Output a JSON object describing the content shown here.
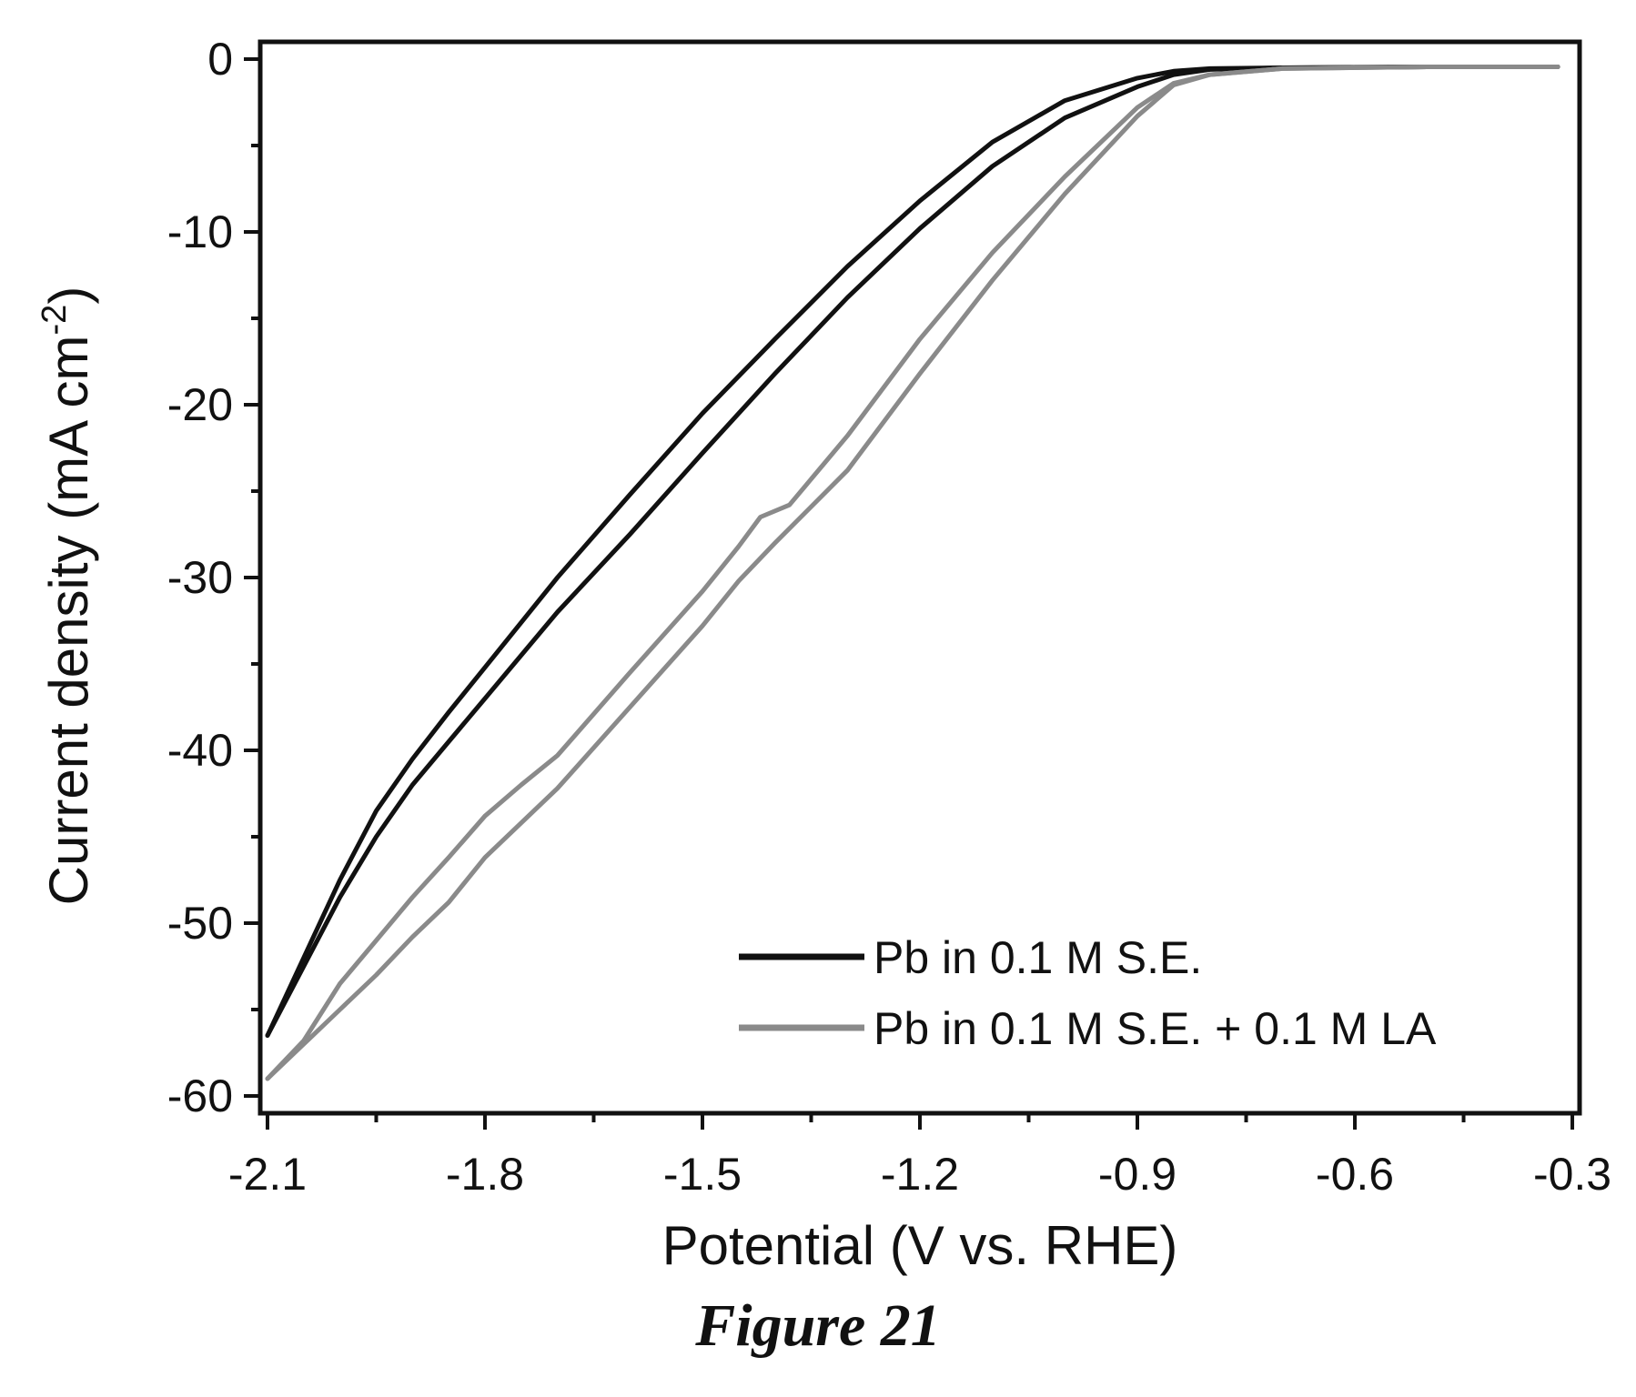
{
  "caption": "Figure 21",
  "chart_data": {
    "type": "line",
    "xlabel": "Potential (V vs. RHE)",
    "ylabel": "Current density (mA cm",
    "ylabel_sup": "-2",
    "ylabel_close": ")",
    "xlim": [
      -2.11,
      -0.29
    ],
    "ylim": [
      -61,
      1
    ],
    "xticks": [
      -2.1,
      -1.8,
      -1.5,
      -1.2,
      -0.9,
      -0.6,
      -0.3
    ],
    "xtick_labels": [
      "-2.1",
      "-1.8",
      "-1.5",
      "-1.2",
      "-0.9",
      "-0.6",
      "-0.3"
    ],
    "yticks": [
      0,
      -10,
      -20,
      -30,
      -40,
      -50,
      -60
    ],
    "ytick_labels": [
      "0",
      "-10",
      "-20",
      "-30",
      "-40",
      "-50",
      "-60"
    ],
    "grid": false,
    "legend_position": "bottom-right",
    "series": [
      {
        "name": "Pb in 0.1 M S.E.",
        "color": "#111111",
        "segments": [
          [
            [
              -2.1,
              -56.5
            ],
            [
              -2.05,
              -52
            ],
            [
              -2.0,
              -47.5
            ],
            [
              -1.95,
              -43.5
            ],
            [
              -1.9,
              -40.5
            ],
            [
              -1.85,
              -37.8
            ],
            [
              -1.8,
              -35.2
            ],
            [
              -1.7,
              -30
            ],
            [
              -1.6,
              -25.2
            ],
            [
              -1.5,
              -20.5
            ],
            [
              -1.4,
              -16.2
            ],
            [
              -1.3,
              -12
            ],
            [
              -1.2,
              -8.2
            ],
            [
              -1.1,
              -4.8
            ],
            [
              -1.0,
              -2.4
            ],
            [
              -0.9,
              -1.1
            ],
            [
              -0.85,
              -0.7
            ],
            [
              -0.8,
              -0.55
            ],
            [
              -0.7,
              -0.5
            ],
            [
              -0.5,
              -0.45
            ],
            [
              -0.32,
              -0.45
            ]
          ],
          [
            [
              -2.1,
              -56.5
            ],
            [
              -2.05,
              -52.5
            ],
            [
              -2.0,
              -48.5
            ],
            [
              -1.95,
              -45
            ],
            [
              -1.9,
              -42
            ],
            [
              -1.85,
              -39.5
            ],
            [
              -1.8,
              -37
            ],
            [
              -1.7,
              -32
            ],
            [
              -1.6,
              -27.5
            ],
            [
              -1.5,
              -22.8
            ],
            [
              -1.4,
              -18.2
            ],
            [
              -1.3,
              -13.8
            ],
            [
              -1.2,
              -9.8
            ],
            [
              -1.1,
              -6.2
            ],
            [
              -1.0,
              -3.4
            ],
            [
              -0.9,
              -1.6
            ],
            [
              -0.85,
              -0.9
            ],
            [
              -0.8,
              -0.6
            ],
            [
              -0.7,
              -0.5
            ],
            [
              -0.5,
              -0.45
            ],
            [
              -0.32,
              -0.45
            ]
          ]
        ]
      },
      {
        "name": "Pb in 0.1 M S.E. + 0.1 M LA",
        "color": "#8a8a8a",
        "segments": [
          [
            [
              -2.1,
              -59
            ],
            [
              -2.05,
              -56.8
            ],
            [
              -2.0,
              -53.5
            ],
            [
              -1.95,
              -51
            ],
            [
              -1.9,
              -48.5
            ],
            [
              -1.85,
              -46.2
            ],
            [
              -1.8,
              -43.8
            ],
            [
              -1.75,
              -42
            ],
            [
              -1.7,
              -40.3
            ],
            [
              -1.6,
              -35.5
            ],
            [
              -1.5,
              -30.8
            ],
            [
              -1.45,
              -28.2
            ],
            [
              -1.42,
              -26.5
            ],
            [
              -1.38,
              -25.8
            ],
            [
              -1.3,
              -21.8
            ],
            [
              -1.2,
              -16.2
            ],
            [
              -1.1,
              -11.2
            ],
            [
              -1.0,
              -6.8
            ],
            [
              -0.9,
              -2.8
            ],
            [
              -0.85,
              -1.4
            ],
            [
              -0.8,
              -0.9
            ],
            [
              -0.7,
              -0.55
            ],
            [
              -0.5,
              -0.45
            ],
            [
              -0.32,
              -0.45
            ]
          ],
          [
            [
              -2.1,
              -59
            ],
            [
              -2.05,
              -57
            ],
            [
              -2.0,
              -55
            ],
            [
              -1.95,
              -53
            ],
            [
              -1.9,
              -50.8
            ],
            [
              -1.85,
              -48.8
            ],
            [
              -1.8,
              -46.2
            ],
            [
              -1.7,
              -42.2
            ],
            [
              -1.6,
              -37.5
            ],
            [
              -1.5,
              -32.8
            ],
            [
              -1.45,
              -30.2
            ],
            [
              -1.4,
              -28
            ],
            [
              -1.3,
              -23.8
            ],
            [
              -1.2,
              -18.2
            ],
            [
              -1.1,
              -12.8
            ],
            [
              -1.0,
              -7.8
            ],
            [
              -0.9,
              -3.3
            ],
            [
              -0.85,
              -1.5
            ],
            [
              -0.8,
              -0.9
            ],
            [
              -0.7,
              -0.55
            ],
            [
              -0.5,
              -0.45
            ],
            [
              -0.32,
              -0.45
            ]
          ]
        ]
      }
    ]
  }
}
